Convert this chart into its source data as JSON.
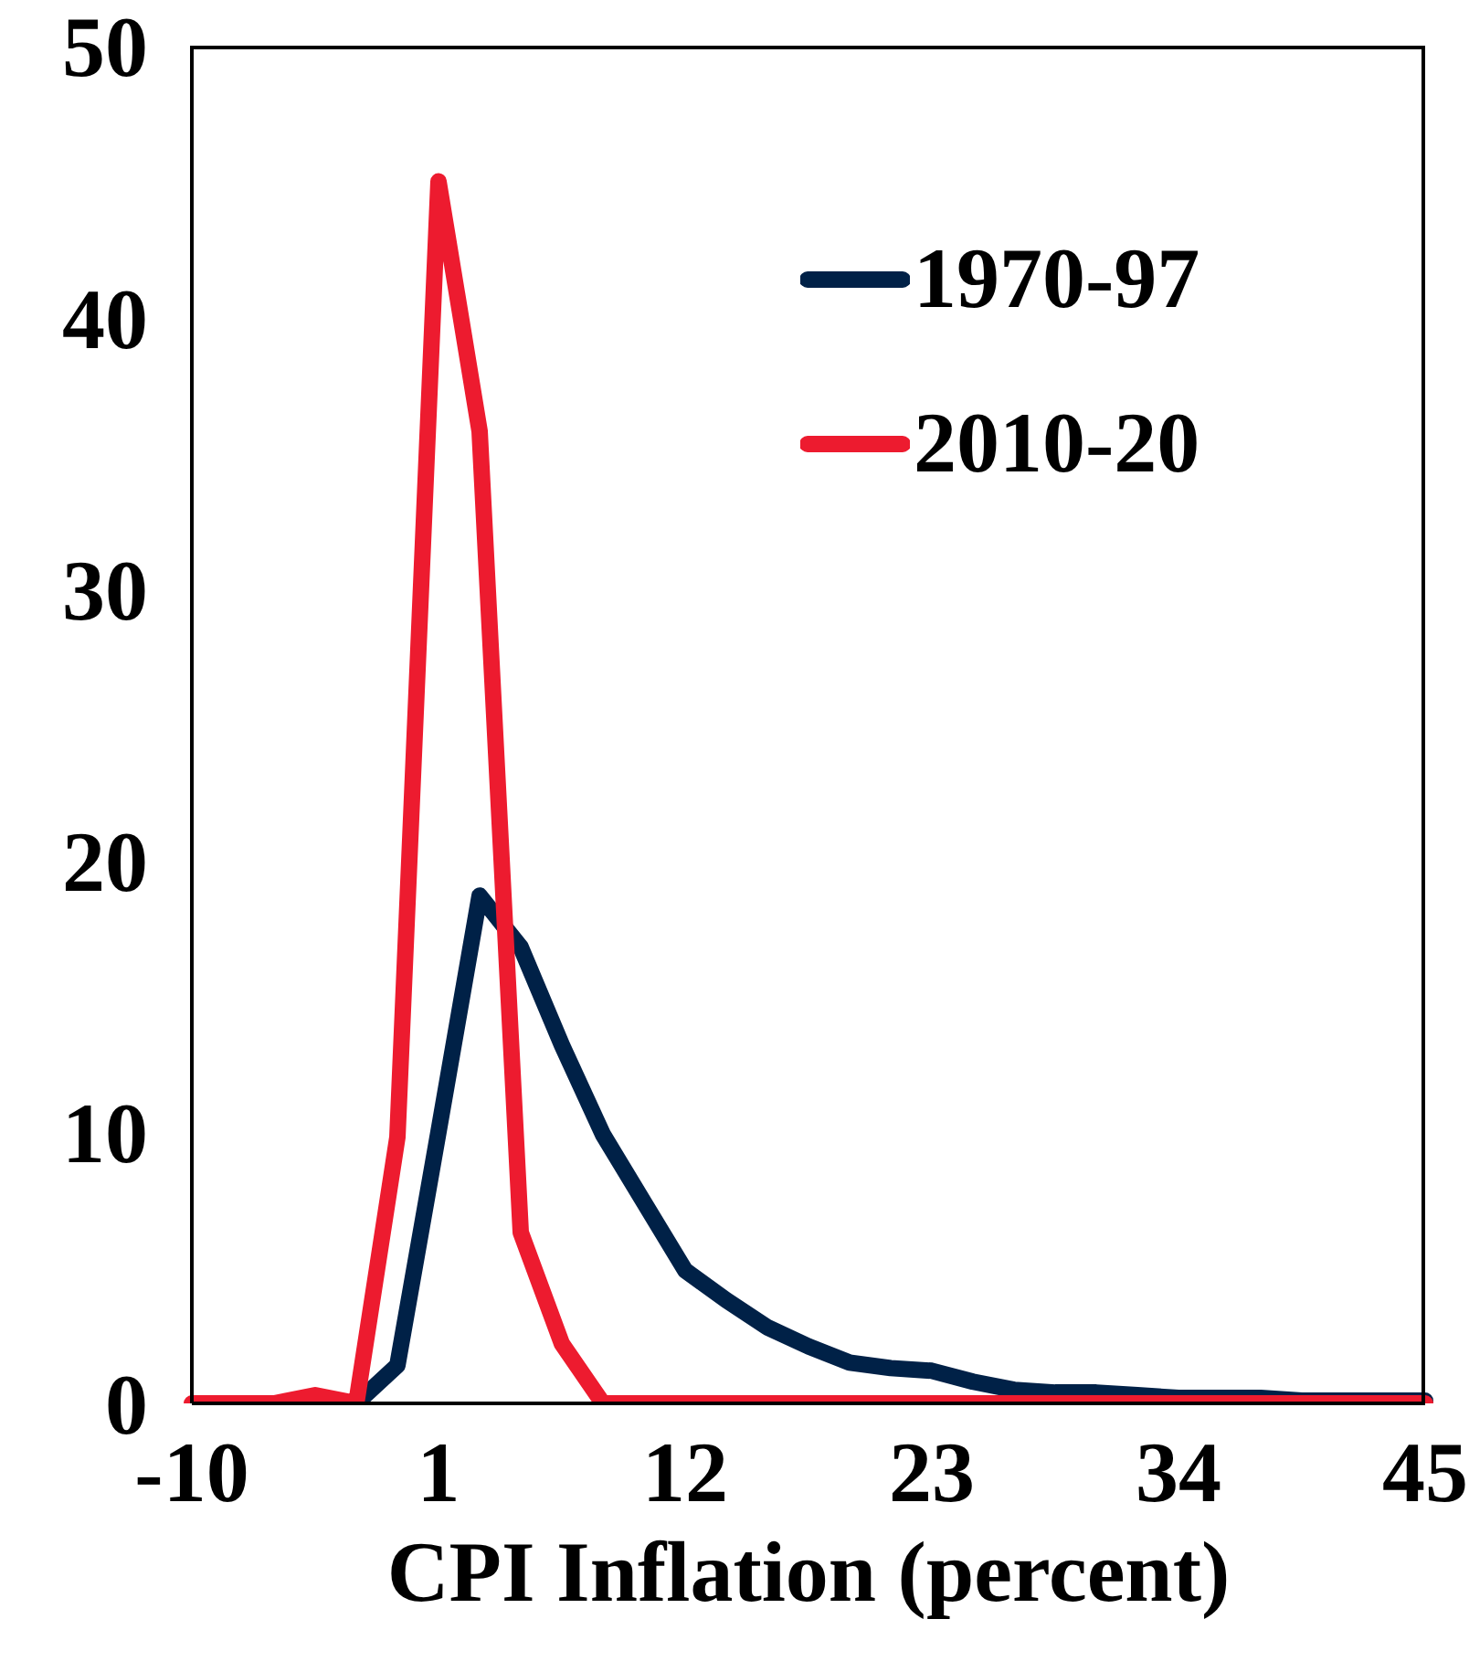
{
  "chart_data": {
    "type": "line",
    "xlabel": "CPI Inflation (percent)",
    "categories": [
      "-10",
      null,
      null,
      null,
      null,
      null,
      "1",
      null,
      null,
      null,
      null,
      null,
      "12",
      null,
      null,
      null,
      null,
      null,
      "23",
      null,
      null,
      null,
      null,
      null,
      "34",
      null,
      null,
      null,
      null,
      null,
      "45"
    ],
    "series": [
      {
        "name": "1970-97",
        "color": "#002147",
        "values": [
          null,
          null,
          null,
          0,
          0,
          1.4,
          10,
          18.7,
          16.8,
          13.2,
          9.9,
          7.4,
          4.9,
          3.8,
          2.8,
          2.1,
          1.5,
          1.3,
          1.2,
          0.8,
          0.5,
          0.4,
          0.4,
          0.3,
          0.2,
          0.2,
          0.2,
          0.1,
          0.1,
          0.1,
          0.1
        ]
      },
      {
        "name": "2010-20",
        "color": "#ed1b2f",
        "values": [
          0,
          0,
          0,
          0.3,
          0,
          9.8,
          45,
          35.8,
          6.3,
          2.2,
          0,
          0,
          0,
          0,
          0,
          0,
          0,
          0,
          0,
          0,
          0,
          0,
          0,
          0,
          0,
          0,
          0,
          0,
          0,
          0,
          0
        ]
      }
    ],
    "ylim": [
      0,
      50
    ],
    "yticks": [
      0,
      10,
      20,
      30,
      40,
      50
    ],
    "grid": false,
    "legend": "top right",
    "marker": "none",
    "line_style": "solid"
  }
}
